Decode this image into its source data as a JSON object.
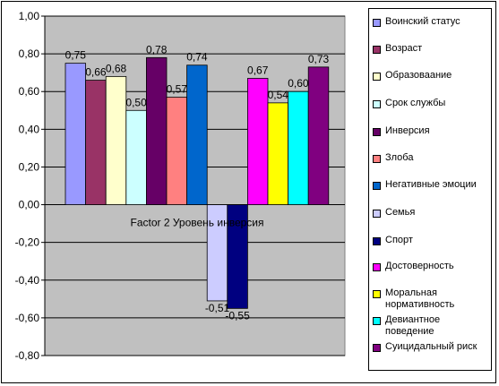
{
  "chart_data": {
    "type": "bar",
    "categories": [
      "Factor 2  Уровень инверсия"
    ],
    "ylim": [
      -0.8,
      1.0
    ],
    "y_ticks": [
      "1,00",
      "0,80",
      "0,60",
      "0,40",
      "0,20",
      "0,00",
      "-0,20",
      "-0,40",
      "-0,60",
      "-0,80"
    ],
    "grid": true,
    "legend_position": "right",
    "plot_background": "#c0c0c0",
    "series": [
      {
        "name": "Воинский статус",
        "values": [
          0.75
        ],
        "label": "0,75",
        "color": "#9999ff"
      },
      {
        "name": "Возраст",
        "values": [
          0.66
        ],
        "label": "0,66",
        "color": "#993366"
      },
      {
        "name": "Образоваание",
        "values": [
          0.68
        ],
        "label": "0,68",
        "color": "#ffffcc"
      },
      {
        "name": "Срок службы",
        "values": [
          0.5
        ],
        "label": "0,50",
        "color": "#ccffff"
      },
      {
        "name": "Инверсия",
        "values": [
          0.78
        ],
        "label": "0,78",
        "color": "#660066"
      },
      {
        "name": "Злоба",
        "values": [
          0.57
        ],
        "label": "0,57",
        "color": "#ff8080"
      },
      {
        "name": "Негативные эмоции",
        "values": [
          0.74
        ],
        "label": "0,74",
        "color": "#0066cc"
      },
      {
        "name": "Семья",
        "values": [
          -0.51
        ],
        "label": "-0,51",
        "color": "#ccccff"
      },
      {
        "name": "Спорт",
        "values": [
          -0.55
        ],
        "label": "-0,55",
        "color": "#000080"
      },
      {
        "name": "Достоверность",
        "values": [
          0.67
        ],
        "label": "0,67",
        "color": "#ff00ff"
      },
      {
        "name": "Моральная нормативность",
        "values": [
          0.54
        ],
        "label": "0,54",
        "color": "#ffff00"
      },
      {
        "name": "Девиантное поведение",
        "values": [
          0.6
        ],
        "label": "0,60",
        "color": "#00ffff"
      },
      {
        "name": "Суицидальный риск",
        "values": [
          0.73
        ],
        "label": "0,73",
        "color": "#800080"
      }
    ]
  }
}
